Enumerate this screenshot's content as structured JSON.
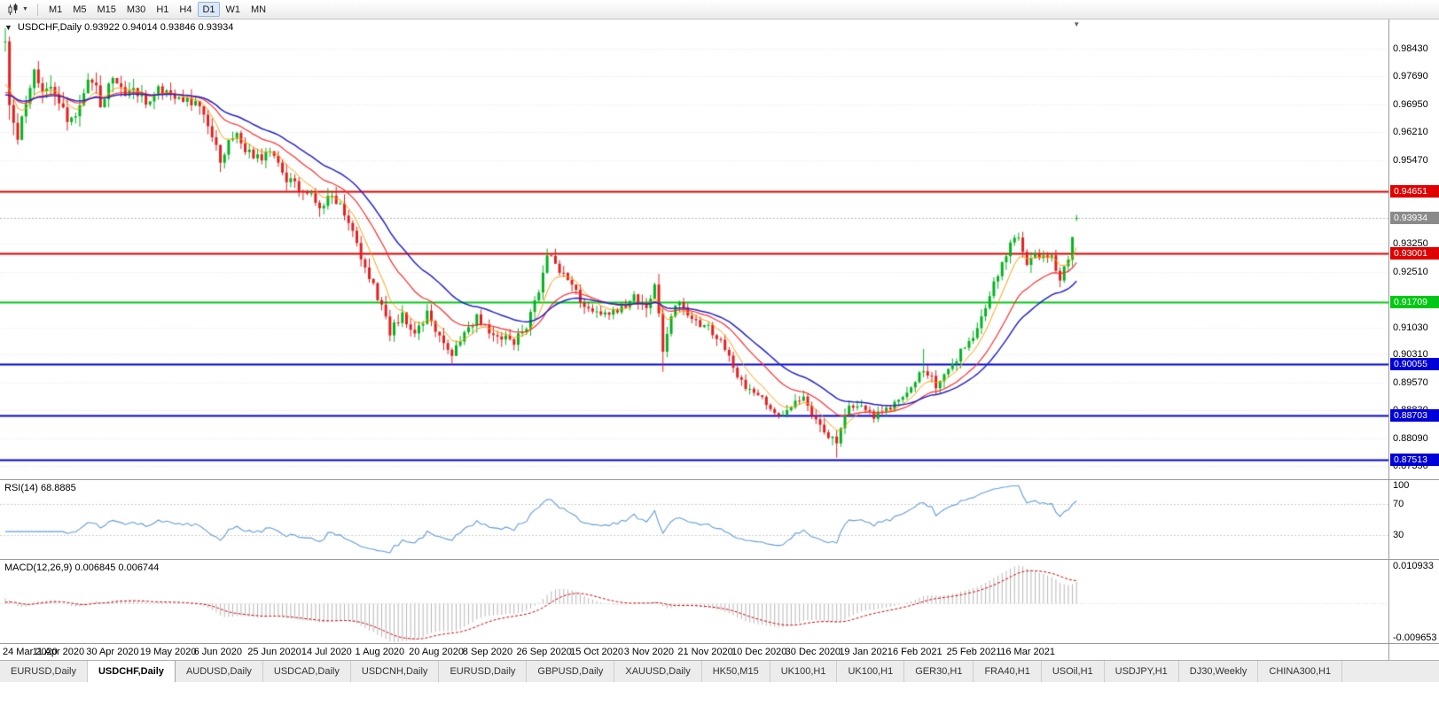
{
  "toolbar": {
    "timeframes": [
      "M1",
      "M5",
      "M15",
      "M30",
      "H1",
      "H4",
      "D1",
      "W1",
      "MN"
    ],
    "active_timeframe": "D1"
  },
  "chart": {
    "collapse_arrow": "▼",
    "symbol_label": "USDCHF,Daily 0.93922 0.94014 0.93846 0.93934"
  },
  "colors": {
    "bull": "#00b41e",
    "bear": "#e31f1f",
    "grid": "#e4e4e4",
    "panel_border": "#9a9a9a"
  },
  "price_axis": {
    "ticks": [
      0.9843,
      0.9769,
      0.9695,
      0.9621,
      0.9547,
      0.9325,
      0.9251,
      0.9103,
      0.9031,
      0.8957,
      0.8883,
      0.8809,
      0.8735
    ],
    "levels": [
      {
        "value": 0.94651,
        "text": "0.94651",
        "color": "#e00000",
        "width": 2
      },
      {
        "value": 0.93001,
        "text": "0.93001",
        "color": "#e00000",
        "width": 2
      },
      {
        "value": 0.91709,
        "text": "0.91709",
        "color": "#00c814",
        "width": 2
      },
      {
        "value": 0.90055,
        "text": "0.90055",
        "color": "#0000d8",
        "width": 2
      },
      {
        "value": 0.88703,
        "text": "0.88703",
        "color": "#0000d8",
        "width": 2
      },
      {
        "value": 0.87513,
        "text": "0.87513",
        "color": "#0000d8",
        "width": 2
      }
    ],
    "current": {
      "value": 0.93934,
      "text": "0.93934",
      "badge_color": "#8a8a8a",
      "line_color": "#b4b4b4"
    }
  },
  "x_axis": {
    "labels": [
      "24 Mar 2020",
      "11 Apr 2020",
      "30 Apr 2020",
      "19 May 2020",
      "6 Jun 2020",
      "25 Jun 2020",
      "14 Jul 2020",
      "1 Aug 2020",
      "20 Aug 2020",
      "8 Sep 2020",
      "26 Sep 2020",
      "15 Oct 2020",
      "3 Nov 2020",
      "21 Nov 2020",
      "10 Dec 2020",
      "30 Dec 2020",
      "19 Jan 2021",
      "6 Feb 2021",
      "25 Feb 2021",
      "16 Mar 2021"
    ]
  },
  "indicators": {
    "rsi": {
      "label": "RSI(14) 68.8885",
      "period": 14,
      "value": "68.8885",
      "color": "#5f9bd8",
      "axis": [
        {
          "v": 100,
          "t": "100"
        },
        {
          "v": 70,
          "t": "70"
        },
        {
          "v": 30,
          "t": "30"
        }
      ],
      "level_lines": [
        70,
        30
      ]
    },
    "macd": {
      "label": "MACD(12,26,9) 0.006845 0.006744",
      "fast": 12,
      "slow": 26,
      "signal": 9,
      "value": "0.006845",
      "signal_value": "0.006744",
      "hist_color": "#b6b6b6",
      "signal_color": "#d00000",
      "axis_top": {
        "v": 0.010933,
        "t": "0.010933"
      },
      "axis_bottom": {
        "v": -0.009653,
        "t": "-0.009653"
      }
    }
  },
  "tab_bar": {
    "active_index": 1,
    "tabs": [
      "EURUSD,Daily",
      "USDCHF,Daily",
      "AUDUSD,Daily",
      "USDCAD,Daily",
      "USDCNH,Daily",
      "EURUSD,Daily",
      "GBPUSD,Daily",
      "XAUUSD,Daily",
      "HK50,M15",
      "UK100,H1",
      "UK100,H1",
      "GER30,H1",
      "FRA40,H1",
      "USOil,H1",
      "USDJPY,H1",
      "DJ30,Weekly",
      "CHINA300,H1"
    ]
  },
  "chart_data": {
    "type": "candlestick",
    "symbol": "USDCHF",
    "timeframe": "Daily",
    "title": "USDCHF,Daily",
    "bar_count": 260,
    "y_range": [
      0.87,
      0.992
    ],
    "current_bar": {
      "open": 0.93922,
      "high": 0.94014,
      "low": 0.93846,
      "close": 0.93934
    },
    "seed": 20210322,
    "noise": 0.00085,
    "wick": 0.0016,
    "price_path": [
      [
        0,
        0.984
      ],
      [
        1,
        0.97
      ],
      [
        3,
        0.962
      ],
      [
        5,
        0.97
      ],
      [
        7,
        0.979
      ],
      [
        9,
        0.972
      ],
      [
        11,
        0.9745
      ],
      [
        13,
        0.969
      ],
      [
        16,
        0.9645
      ],
      [
        19,
        0.973
      ],
      [
        21,
        0.9765
      ],
      [
        23,
        0.97
      ],
      [
        26,
        0.9755
      ],
      [
        29,
        0.9725
      ],
      [
        31,
        0.9745
      ],
      [
        34,
        0.97
      ],
      [
        37,
        0.9745
      ],
      [
        40,
        0.972
      ],
      [
        44,
        0.971
      ],
      [
        47,
        0.969
      ],
      [
        50,
        0.9615
      ],
      [
        52,
        0.9535
      ],
      [
        54,
        0.96
      ],
      [
        56,
        0.962
      ],
      [
        58,
        0.9575
      ],
      [
        61,
        0.955
      ],
      [
        64,
        0.9565
      ],
      [
        67,
        0.951
      ],
      [
        70,
        0.948
      ],
      [
        73,
        0.9462
      ],
      [
        76,
        0.942
      ],
      [
        79,
        0.9462
      ],
      [
        82,
        0.94
      ],
      [
        85,
        0.932
      ],
      [
        88,
        0.924
      ],
      [
        91,
        0.916
      ],
      [
        93,
        0.909
      ],
      [
        96,
        0.914
      ],
      [
        99,
        0.9085
      ],
      [
        102,
        0.914
      ],
      [
        105,
        0.9075
      ],
      [
        108,
        0.9035
      ],
      [
        111,
        0.909
      ],
      [
        114,
        0.913
      ],
      [
        117,
        0.9095
      ],
      [
        120,
        0.908
      ],
      [
        123,
        0.9065
      ],
      [
        126,
        0.911
      ],
      [
        129,
        0.92
      ],
      [
        131,
        0.9298
      ],
      [
        134,
        0.925
      ],
      [
        137,
        0.9215
      ],
      [
        140,
        0.915
      ],
      [
        143,
        0.9145
      ],
      [
        146,
        0.9132
      ],
      [
        149,
        0.916
      ],
      [
        152,
        0.918
      ],
      [
        155,
        0.915
      ],
      [
        157,
        0.9215
      ],
      [
        159,
        0.904
      ],
      [
        161,
        0.9135
      ],
      [
        163,
        0.9168
      ],
      [
        166,
        0.912
      ],
      [
        169,
        0.911
      ],
      [
        172,
        0.908
      ],
      [
        175,
        0.9025
      ],
      [
        178,
        0.8955
      ],
      [
        181,
        0.893
      ],
      [
        184,
        0.89
      ],
      [
        187,
        0.8865
      ],
      [
        190,
        0.8895
      ],
      [
        193,
        0.892
      ],
      [
        196,
        0.885
      ],
      [
        199,
        0.8815
      ],
      [
        201,
        0.879
      ],
      [
        204,
        0.89
      ],
      [
        207,
        0.8893
      ],
      [
        210,
        0.8865
      ],
      [
        213,
        0.8885
      ],
      [
        216,
        0.8905
      ],
      [
        219,
        0.895
      ],
      [
        222,
        0.8995
      ],
      [
        225,
        0.895
      ],
      [
        228,
        0.8985
      ],
      [
        231,
        0.904
      ],
      [
        234,
        0.9085
      ],
      [
        237,
        0.916
      ],
      [
        240,
        0.925
      ],
      [
        243,
        0.932
      ],
      [
        245,
        0.9345
      ],
      [
        247,
        0.928
      ],
      [
        249,
        0.93
      ],
      [
        251,
        0.929
      ],
      [
        253,
        0.9285
      ],
      [
        255,
        0.9225
      ],
      [
        257,
        0.929
      ],
      [
        259,
        0.93934
      ]
    ],
    "volatility_path": [
      [
        0,
        2.6
      ],
      [
        10,
        2.0
      ],
      [
        20,
        1.8
      ],
      [
        40,
        1.5
      ],
      [
        55,
        1.4
      ],
      [
        75,
        1.5
      ],
      [
        90,
        1.6
      ],
      [
        110,
        1.2
      ],
      [
        128,
        1.4
      ],
      [
        145,
        1.1
      ],
      [
        158,
        1.8
      ],
      [
        170,
        1.2
      ],
      [
        185,
        1.1
      ],
      [
        200,
        1.3
      ],
      [
        215,
        1.0
      ],
      [
        232,
        1.3
      ],
      [
        245,
        1.4
      ],
      [
        259,
        1.2
      ]
    ],
    "spikes": [
      {
        "i": 52,
        "low": 0.9515
      },
      {
        "i": 108,
        "low": 0.9003
      },
      {
        "i": 131,
        "high": 0.9305
      },
      {
        "i": 159,
        "low": 0.8985
      },
      {
        "i": 201,
        "low": 0.8757
      },
      {
        "i": 222,
        "high": 0.9046
      }
    ],
    "moving_averages": [
      {
        "name": "fast-ma",
        "period": 7,
        "color": "#ff9d00",
        "width": 1
      },
      {
        "name": "medium-ma",
        "period": 18,
        "color": "#ff2a2a",
        "width": 1.2
      },
      {
        "name": "slow-ma",
        "period": 30,
        "color": "#2222cc",
        "width": 1.5
      }
    ]
  }
}
